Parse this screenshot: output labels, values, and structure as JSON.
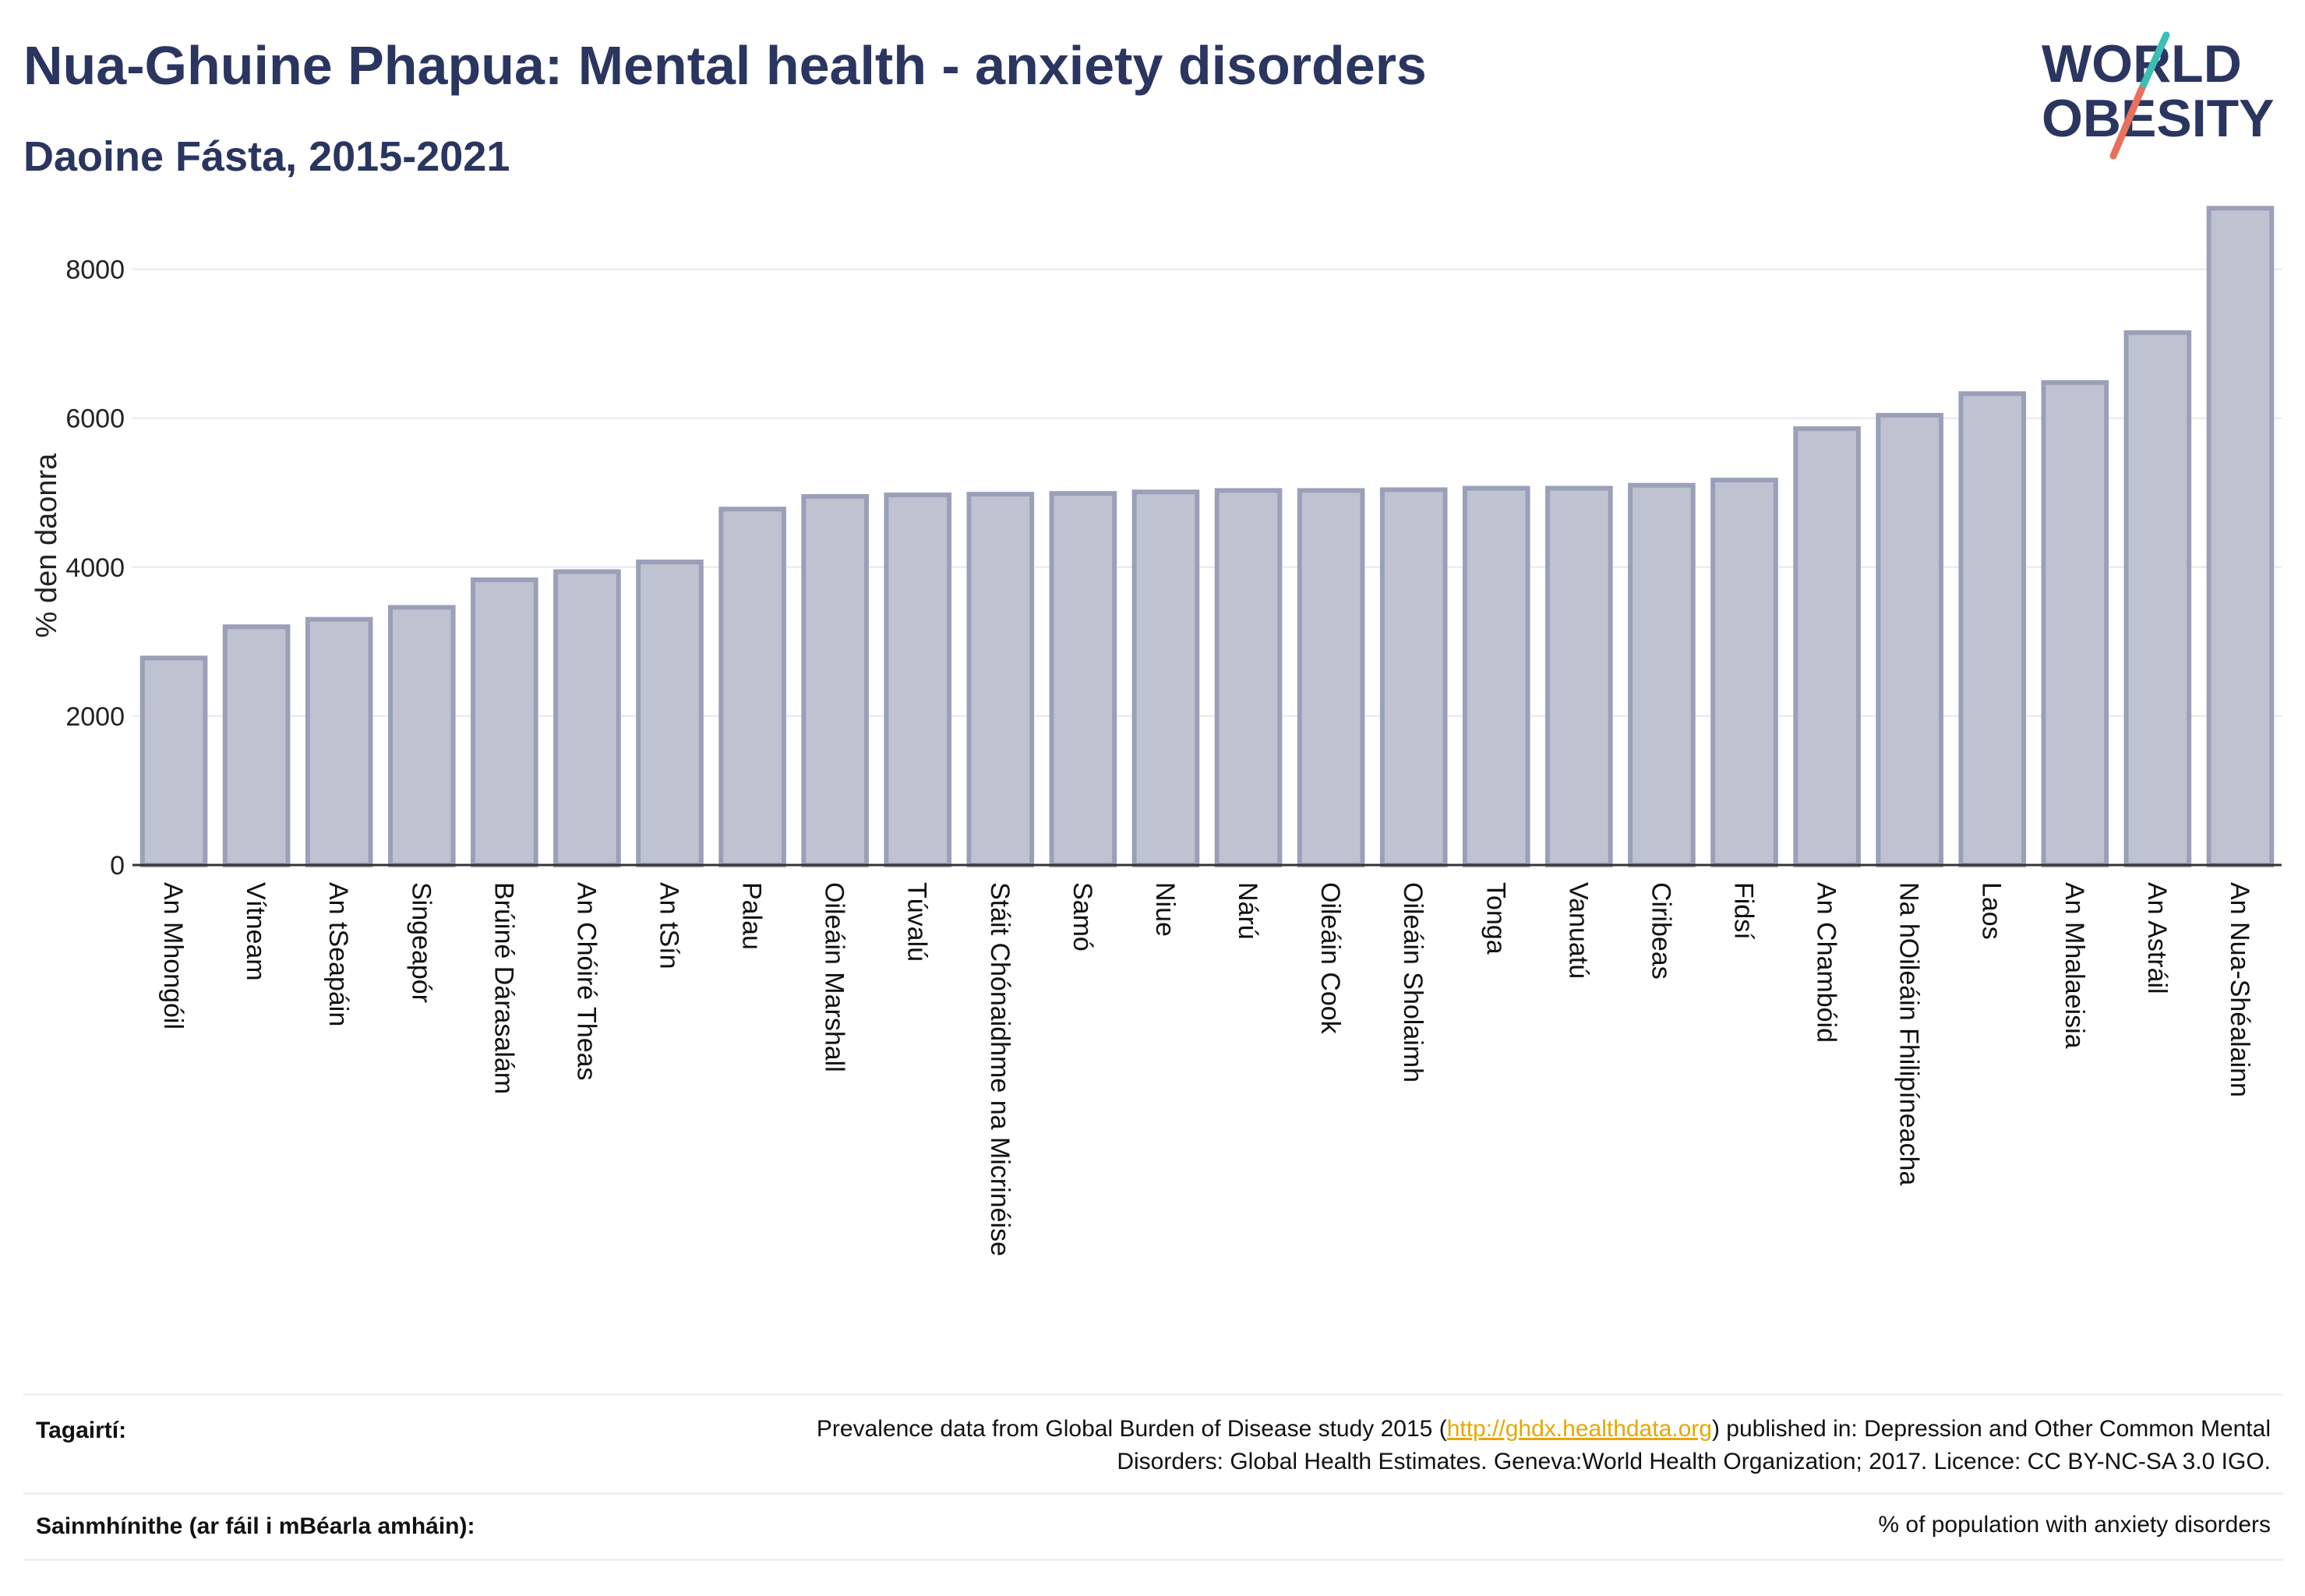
{
  "header": {
    "title": "Nua-Ghuine Phapua: Mental health - anxiety disorders",
    "subtitle": "Daoine Fásta, 2015-2021"
  },
  "logo": {
    "line1": "WORLD",
    "line2": "OBESITY",
    "accent_teal": "#3bbfb5",
    "accent_red": "#e8705c",
    "text_color": "#2a3560"
  },
  "chart_data": {
    "type": "bar",
    "ylabel": "% den daonra",
    "xlabel": "",
    "ylim": [
      0,
      9000
    ],
    "yticks": [
      0,
      2000,
      4000,
      6000,
      8000
    ],
    "grid": true,
    "bar_color": "#bfc3d1",
    "bar_edge_color": "#9aa0b8",
    "categories": [
      "An Mhongóil",
      "Vítneam",
      "An tSeapáin",
      "Singeapór",
      "Brúiné Dárasalám",
      "An Chóiré Theas",
      "An tSín",
      "Palau",
      "Oileáin Marshall",
      "Túvalú",
      "Stáit Chónaidhme na Micrinéise",
      "Samó",
      "Niue",
      "Nárú",
      "Oileáin Cook",
      "Oileáin Sholaimh",
      "Tonga",
      "Vanuatú",
      "Ciribeas",
      "Fidsí",
      "An Chambóid",
      "Na hOileáin Fhilipíneacha",
      "Laos",
      "An Mhalaeisia",
      "An Astráil",
      "An Nua-Shéalainn"
    ],
    "values": [
      2780,
      3200,
      3300,
      3460,
      3830,
      3940,
      4070,
      4780,
      4950,
      4970,
      4980,
      4990,
      5010,
      5030,
      5030,
      5040,
      5060,
      5060,
      5100,
      5170,
      5860,
      6040,
      6330,
      6480,
      7150,
      8820
    ]
  },
  "footer": {
    "refs_label": "Tagairtí:",
    "refs_text_before": "Prevalence data from Global Burden of Disease study 2015 (",
    "refs_link": "http://ghdx.healthdata.org",
    "refs_text_after": ") published in: Depression and Other Common Mental Disorders: Global Health Estimates. Geneva:World Health Organization; 2017. Licence: CC BY-NC-SA 3.0 IGO.",
    "defs_label": "Sainmhínithe (ar fáil i mBéarla amháin):",
    "defs_text": "% of population with anxiety disorders"
  }
}
